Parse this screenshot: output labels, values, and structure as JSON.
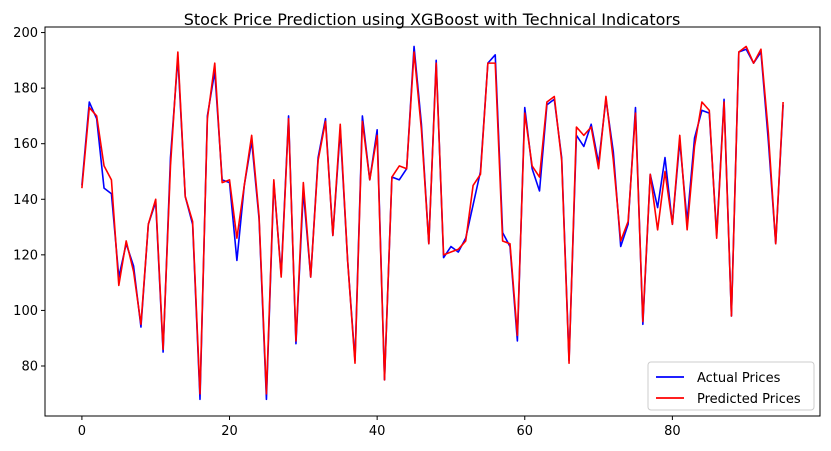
{
  "chart_data": {
    "type": "line",
    "title": "Stock Price Prediction using XGBoost with Technical Indicators",
    "xlabel": "",
    "ylabel": "",
    "xlim": [
      -5,
      100
    ],
    "ylim": [
      62,
      202
    ],
    "xticks": [
      0,
      20,
      40,
      60,
      80
    ],
    "yticks": [
      80,
      100,
      120,
      140,
      160,
      180,
      200
    ],
    "grid": false,
    "legend_position": "lower-right",
    "series": [
      {
        "name": "Actual Prices",
        "color": "#0000ff",
        "values": [
          145,
          175,
          169,
          144,
          142,
          112,
          124,
          116,
          94,
          131,
          139,
          85,
          155,
          191,
          141,
          131,
          68,
          170,
          186,
          147,
          146,
          118,
          145,
          161,
          133,
          68,
          146,
          113,
          170,
          88,
          143,
          112,
          155,
          169,
          127,
          165,
          118,
          82,
          170,
          147,
          165,
          75,
          148,
          147,
          151,
          195,
          167,
          124,
          190,
          119,
          123,
          121,
          126,
          138,
          150,
          189,
          192,
          128,
          123,
          89,
          173,
          151,
          143,
          174,
          176,
          155,
          82,
          163,
          159,
          167,
          153,
          176,
          157,
          123,
          131,
          173,
          95,
          149,
          137,
          155,
          131,
          161,
          132,
          162,
          172,
          171,
          127,
          176,
          98,
          193,
          194,
          189,
          193,
          161,
          124,
          174
        ]
      },
      {
        "name": "Predicted Prices",
        "color": "#ff0000",
        "values": [
          144,
          173,
          170,
          152,
          147,
          109,
          125,
          114,
          95,
          131,
          140,
          86,
          152,
          193,
          141,
          132,
          70,
          169,
          189,
          146,
          147,
          126,
          145,
          163,
          134,
          70,
          147,
          112,
          169,
          89,
          146,
          112,
          154,
          168,
          127,
          167,
          118,
          81,
          168,
          147,
          163,
          75,
          148,
          152,
          151,
          193,
          165,
          124,
          189,
          120,
          121,
          122,
          125,
          145,
          149,
          189,
          189,
          125,
          124,
          91,
          171,
          152,
          148,
          175,
          177,
          154,
          81,
          166,
          163,
          166,
          151,
          177,
          154,
          125,
          132,
          171,
          96,
          149,
          129,
          150,
          131,
          163,
          129,
          159,
          175,
          172,
          126,
          175,
          98,
          193,
          195,
          189,
          194,
          164,
          124,
          175
        ]
      }
    ]
  }
}
